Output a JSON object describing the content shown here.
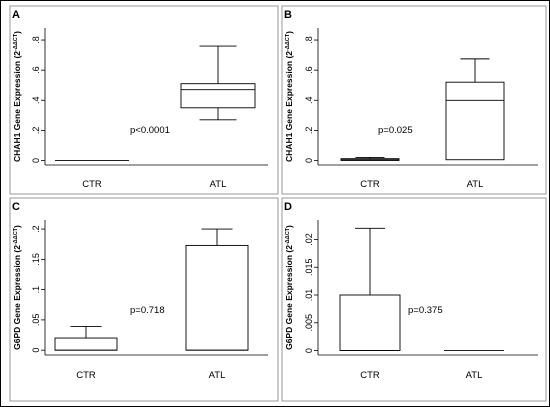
{
  "chart_data": [
    {
      "type": "box",
      "panel": "A",
      "ylabel": "CHAH1 Gene Expression (2",
      "ylabel_sup": "-ΔΔCT",
      "ylabel_close": ")",
      "yticks": [
        0,
        0.2,
        0.4,
        0.6,
        0.8
      ],
      "ytick_labels": [
        "0",
        ".2",
        ".4",
        ".6",
        ".8"
      ],
      "ylim": [
        -0.03,
        0.88
      ],
      "categories": [
        "CTR",
        "ATL"
      ],
      "boxes": [
        {
          "min": 0,
          "q1": 0,
          "median": 0,
          "q3": 0,
          "max": 0
        },
        {
          "min": 0.27,
          "q1": 0.35,
          "median": 0.47,
          "q3": 0.51,
          "max": 0.76
        }
      ],
      "pvalue": "p<0.0001"
    },
    {
      "type": "box",
      "panel": "B",
      "ylabel": "CHAH1 Gene Expression (2",
      "ylabel_sup": "-ΔΔCT",
      "ylabel_close": ")",
      "yticks": [
        0,
        0.2,
        0.4,
        0.6,
        0.8
      ],
      "ytick_labels": [
        "0",
        ".2",
        ".4",
        ".6",
        ".8"
      ],
      "ylim": [
        -0.03,
        0.88
      ],
      "categories": [
        "CTR",
        "ATL"
      ],
      "boxes": [
        {
          "min": 0,
          "q1": 0,
          "median": 0.005,
          "q3": 0.012,
          "max": 0.02
        },
        {
          "min": 0.005,
          "q1": 0.005,
          "median": 0.4,
          "q3": 0.52,
          "max": 0.675
        }
      ],
      "pvalue": "p=0.025"
    },
    {
      "type": "box",
      "panel": "C",
      "ylabel": "G6PD Gene Expression (2",
      "ylabel_sup": "-ΔΔCT",
      "ylabel_close": ")",
      "yticks": [
        0,
        0.05,
        0.1,
        0.15,
        0.2
      ],
      "ytick_labels": [
        "0",
        ".05",
        ".1",
        ".15",
        ".2"
      ],
      "ylim": [
        -0.008,
        0.215
      ],
      "categories": [
        "CTR",
        "ATL"
      ],
      "boxes": [
        {
          "min": 0,
          "q1": 0,
          "median": 0,
          "q3": 0.02,
          "max": 0.039
        },
        {
          "min": 0,
          "q1": 0,
          "median": 0,
          "q3": 0.173,
          "max": 0.2
        }
      ],
      "pvalue": "p=0.718"
    },
    {
      "type": "box",
      "panel": "D",
      "ylabel": "G6PD Gene Expression (2",
      "ylabel_sup": "-ΔΔCT",
      "ylabel_close": ")",
      "yticks": [
        0,
        0.005,
        0.01,
        0.015,
        0.02
      ],
      "ytick_labels": [
        "0",
        ".005",
        ".01",
        ".015",
        ".02"
      ],
      "ylim": [
        -0.0008,
        0.0235
      ],
      "categories": [
        "CTR",
        "ATL"
      ],
      "boxes": [
        {
          "min": 0,
          "q1": 0,
          "median": 0,
          "q3": 0.01,
          "max": 0.022
        },
        {
          "min": 0,
          "q1": 0,
          "median": 0,
          "q3": 0,
          "max": 0
        }
      ],
      "pvalue": "p=0.375"
    }
  ]
}
